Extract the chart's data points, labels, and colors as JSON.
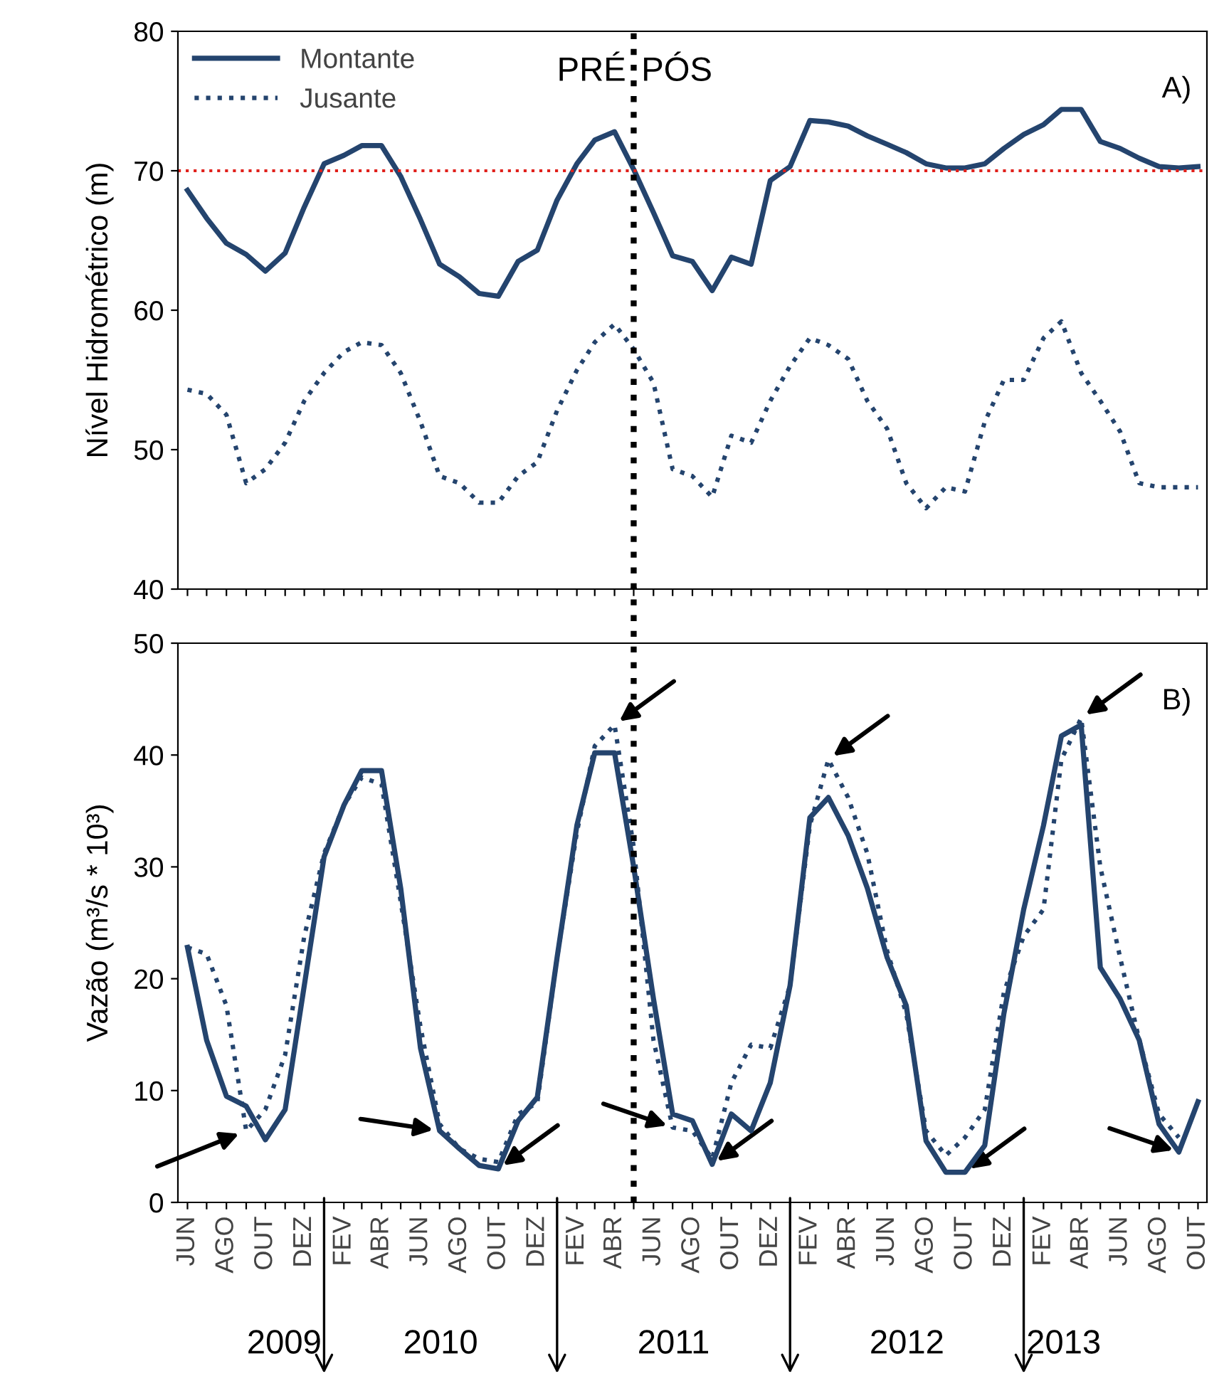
{
  "chart_data": [
    {
      "type": "line",
      "ylabel": "Nível Hidrométrico (m)",
      "ylim": [
        40,
        80
      ],
      "yticks": [
        40,
        50,
        60,
        70,
        80
      ],
      "tick_labels": "y",
      "legend": "top left",
      "grid": false,
      "marker": "none",
      "x": [
        "2009-06",
        "2009-07",
        "2009-08",
        "2009-09",
        "2009-10",
        "2009-11",
        "2009-12",
        "2010-01",
        "2010-02",
        "2010-03",
        "2010-04",
        "2010-05",
        "2010-06",
        "2010-07",
        "2010-08",
        "2010-09",
        "2010-10",
        "2010-11",
        "2010-12",
        "2011-01",
        "2011-02",
        "2011-03",
        "2011-04",
        "2011-05",
        "2011-06",
        "2011-07",
        "2011-08",
        "2011-09",
        "2011-10",
        "2011-11",
        "2011-12",
        "2012-01",
        "2012-02",
        "2012-03",
        "2012-04",
        "2012-05",
        "2012-06",
        "2012-07",
        "2012-08",
        "2012-09",
        "2012-10",
        "2012-11",
        "2012-12",
        "2013-01",
        "2013-02",
        "2013-03",
        "2013-04",
        "2013-05",
        "2013-06",
        "2013-07",
        "2013-08",
        "2013-09",
        "2013-10"
      ],
      "xlim": [
        "2009-05-17",
        "2013-10-15"
      ],
      "xticks": [
        {
          "value": "2009-06",
          "label": null
        },
        {
          "value": "2009-07",
          "label": null
        },
        {
          "value": "2009-08",
          "label": null
        },
        {
          "value": "2009-09",
          "label": null
        },
        {
          "value": "2009-10",
          "label": null
        },
        {
          "value": "2009-11",
          "label": null
        },
        {
          "value": "2009-12",
          "label": null
        },
        {
          "value": "2010-01",
          "label": null
        },
        {
          "value": "2010-02",
          "label": null
        },
        {
          "value": "2010-03",
          "label": null
        },
        {
          "value": "2010-04",
          "label": null
        },
        {
          "value": "2010-05",
          "label": null
        },
        {
          "value": "2010-06",
          "label": null
        },
        {
          "value": "2010-07",
          "label": null
        },
        {
          "value": "2010-08",
          "label": null
        },
        {
          "value": "2010-09",
          "label": null
        },
        {
          "value": "2010-10",
          "label": null
        },
        {
          "value": "2010-11",
          "label": null
        },
        {
          "value": "2010-12",
          "label": null
        },
        {
          "value": "2011-01",
          "label": null
        },
        {
          "value": "2011-02",
          "label": null
        },
        {
          "value": "2011-03",
          "label": null
        },
        {
          "value": "2011-04",
          "label": null
        },
        {
          "value": "2011-05",
          "label": null
        },
        {
          "value": "2011-06",
          "label": null
        },
        {
          "value": "2011-07",
          "label": null
        },
        {
          "value": "2011-08",
          "label": null
        },
        {
          "value": "2011-09",
          "label": null
        },
        {
          "value": "2011-10",
          "label": null
        },
        {
          "value": "2011-11",
          "label": null
        },
        {
          "value": "2011-12",
          "label": null
        },
        {
          "value": "2012-01",
          "label": null
        },
        {
          "value": "2012-02",
          "label": null
        },
        {
          "value": "2012-03",
          "label": null
        },
        {
          "value": "2012-04",
          "label": null
        },
        {
          "value": "2012-05",
          "label": null
        },
        {
          "value": "2012-06",
          "label": null
        },
        {
          "value": "2012-07",
          "label": null
        },
        {
          "value": "2012-08",
          "label": null
        },
        {
          "value": "2012-09",
          "label": null
        },
        {
          "value": "2012-10",
          "label": null
        },
        {
          "value": "2012-11",
          "label": null
        },
        {
          "value": "2012-12",
          "label": null
        },
        {
          "value": "2013-01",
          "label": null
        },
        {
          "value": "2013-02",
          "label": null
        },
        {
          "value": "2013-03",
          "label": null
        },
        {
          "value": "2013-04",
          "label": null
        },
        {
          "value": "2013-05",
          "label": null
        },
        {
          "value": "2013-06",
          "label": null
        },
        {
          "value": "2013-07",
          "label": null
        },
        {
          "value": "2013-08",
          "label": null
        },
        {
          "value": "2013-09",
          "label": null
        },
        {
          "value": "2013-10",
          "label": null
        }
      ],
      "series": [
        {
          "name": "Montante",
          "color": "#24446e",
          "line_style": "solid",
          "values": [
            68.6,
            66.6,
            64.8,
            64.0,
            62.8,
            64.1,
            67.4,
            70.5,
            71.1,
            71.8,
            71.8,
            69.6,
            66.5,
            63.3,
            62.4,
            61.2,
            61.0,
            63.5,
            64.3,
            67.9,
            70.5,
            72.2,
            72.8,
            70.1,
            67.0,
            63.9,
            63.5,
            61.4,
            63.8,
            63.3,
            69.3,
            70.3,
            73.6,
            73.5,
            73.2,
            72.5,
            71.9,
            71.3,
            70.5,
            70.2,
            70.2,
            70.5,
            71.6,
            72.6,
            73.3,
            74.4,
            74.4,
            72.1,
            71.6,
            70.9,
            70.3,
            70.2,
            70.3
          ]
        },
        {
          "name": "Jusante",
          "color": "#24446e",
          "line_style": "dotted",
          "values": [
            54.3,
            54.0,
            52.5,
            47.6,
            48.6,
            50.5,
            53.5,
            55.5,
            57.0,
            57.7,
            57.5,
            55.5,
            52.0,
            48.1,
            47.6,
            46.2,
            46.2,
            48.1,
            49.1,
            52.8,
            55.7,
            57.7,
            59.0,
            57.2,
            54.8,
            48.6,
            48.1,
            46.6,
            51.0,
            50.5,
            53.5,
            56.0,
            58.0,
            57.5,
            56.5,
            53.5,
            51.5,
            47.6,
            45.8,
            47.3,
            47.0,
            52.0,
            55.0,
            55.0,
            58.0,
            59.2,
            55.5,
            53.5,
            51.3,
            47.6,
            47.3,
            47.3,
            47.3
          ]
        }
      ],
      "ref_lines": [
        {
          "axis": "y",
          "value": 70,
          "color": "#e0201b",
          "line_style": "dotted"
        },
        {
          "axis": "x",
          "value": "2011-05",
          "color": "#000000",
          "line_style": "dotted"
        }
      ],
      "annotations": [
        "PRÉ",
        "PÓS",
        "A)"
      ]
    },
    {
      "type": "line",
      "ylabel": "Vazão (m³/s * 10³)",
      "ylim": [
        0,
        50
      ],
      "yticks": [
        0,
        10,
        20,
        30,
        40,
        50
      ],
      "grid": false,
      "marker": "none",
      "x": [
        "2009-06",
        "2009-07",
        "2009-08",
        "2009-09",
        "2009-10",
        "2009-11",
        "2009-12",
        "2010-01",
        "2010-02",
        "2010-03",
        "2010-04",
        "2010-05",
        "2010-06",
        "2010-07",
        "2010-08",
        "2010-09",
        "2010-10",
        "2010-11",
        "2010-12",
        "2011-01",
        "2011-02",
        "2011-03",
        "2011-04",
        "2011-05",
        "2011-06",
        "2011-07",
        "2011-08",
        "2011-09",
        "2011-10",
        "2011-11",
        "2011-12",
        "2012-01",
        "2012-02",
        "2012-03",
        "2012-04",
        "2012-05",
        "2012-06",
        "2012-07",
        "2012-08",
        "2012-09",
        "2012-10",
        "2012-11",
        "2012-12",
        "2013-01",
        "2013-02",
        "2013-03",
        "2013-04",
        "2013-05",
        "2013-06",
        "2013-07",
        "2013-08",
        "2013-09",
        "2013-10"
      ],
      "xlim": [
        "2009-05-17",
        "2013-10-15"
      ],
      "xticks": [
        {
          "value": "2009-06",
          "label": "JUN"
        },
        {
          "value": "2009-07",
          "label": null
        },
        {
          "value": "2009-08",
          "label": "AGO"
        },
        {
          "value": "2009-09",
          "label": null
        },
        {
          "value": "2009-10",
          "label": "OUT"
        },
        {
          "value": "2009-11",
          "label": null
        },
        {
          "value": "2009-12",
          "label": "DEZ"
        },
        {
          "value": "2010-01",
          "label": null
        },
        {
          "value": "2010-02",
          "label": "FEV"
        },
        {
          "value": "2010-03",
          "label": null
        },
        {
          "value": "2010-04",
          "label": "ABR"
        },
        {
          "value": "2010-05",
          "label": null
        },
        {
          "value": "2010-06",
          "label": "JUN"
        },
        {
          "value": "2010-07",
          "label": null
        },
        {
          "value": "2010-08",
          "label": "AGO"
        },
        {
          "value": "2010-09",
          "label": null
        },
        {
          "value": "2010-10",
          "label": "OUT"
        },
        {
          "value": "2010-11",
          "label": null
        },
        {
          "value": "2010-12",
          "label": "DEZ"
        },
        {
          "value": "2011-01",
          "label": null
        },
        {
          "value": "2011-02",
          "label": "FEV"
        },
        {
          "value": "2011-03",
          "label": null
        },
        {
          "value": "2011-04",
          "label": "ABR"
        },
        {
          "value": "2011-05",
          "label": null
        },
        {
          "value": "2011-06",
          "label": "JUN"
        },
        {
          "value": "2011-07",
          "label": null
        },
        {
          "value": "2011-08",
          "label": "AGO"
        },
        {
          "value": "2011-09",
          "label": null
        },
        {
          "value": "2011-10",
          "label": "OUT"
        },
        {
          "value": "2011-11",
          "label": null
        },
        {
          "value": "2011-12",
          "label": "DEZ"
        },
        {
          "value": "2012-01",
          "label": null
        },
        {
          "value": "2012-02",
          "label": "FEV"
        },
        {
          "value": "2012-03",
          "label": null
        },
        {
          "value": "2012-04",
          "label": "ABR"
        },
        {
          "value": "2012-05",
          "label": null
        },
        {
          "value": "2012-06",
          "label": "JUN"
        },
        {
          "value": "2012-07",
          "label": null
        },
        {
          "value": "2012-08",
          "label": "AGO"
        },
        {
          "value": "2012-09",
          "label": null
        },
        {
          "value": "2012-10",
          "label": "OUT"
        },
        {
          "value": "2012-11",
          "label": null
        },
        {
          "value": "2012-12",
          "label": "DEZ"
        },
        {
          "value": "2013-01",
          "label": null
        },
        {
          "value": "2013-02",
          "label": "FEV"
        },
        {
          "value": "2013-03",
          "label": null
        },
        {
          "value": "2013-04",
          "label": "ABR"
        },
        {
          "value": "2013-05",
          "label": null
        },
        {
          "value": "2013-06",
          "label": "JUN"
        },
        {
          "value": "2013-07",
          "label": null
        },
        {
          "value": "2013-08",
          "label": "AGO"
        },
        {
          "value": "2013-09",
          "label": null
        },
        {
          "value": "2013-10",
          "label": "OUT"
        }
      ],
      "series": [
        {
          "color": "#24446e",
          "line_style": "solid",
          "values": [
            22.8,
            14.5,
            9.5,
            8.6,
            5.6,
            8.3,
            19.4,
            30.9,
            35.5,
            38.6,
            38.6,
            28.1,
            13.8,
            6.4,
            4.8,
            3.3,
            3.0,
            7.3,
            9.4,
            21.9,
            33.7,
            40.2,
            40.2,
            30.0,
            18.2,
            7.9,
            7.3,
            3.4,
            7.9,
            6.4,
            10.7,
            19.4,
            34.4,
            36.2,
            32.8,
            28.1,
            21.9,
            17.6,
            5.5,
            2.7,
            2.7,
            5.1,
            16.9,
            26.2,
            33.7,
            41.7,
            42.7,
            21.0,
            18.2,
            14.5,
            7.0,
            4.5,
            9.0
          ]
        },
        {
          "color": "#24446e",
          "line_style": "dotted",
          "values": [
            22.8,
            22.2,
            17.6,
            6.4,
            8.3,
            13.2,
            23.8,
            31.2,
            35.5,
            38.0,
            37.4,
            26.9,
            15.7,
            7.0,
            4.8,
            3.9,
            3.6,
            7.9,
            8.9,
            21.9,
            33.1,
            40.8,
            42.7,
            31.8,
            14.5,
            6.7,
            6.4,
            3.9,
            10.7,
            14.1,
            13.8,
            19.4,
            33.7,
            39.6,
            36.2,
            31.2,
            22.5,
            16.9,
            6.4,
            4.2,
            5.8,
            8.3,
            18.8,
            23.8,
            26.2,
            39.6,
            43.3,
            30.0,
            21.9,
            14.5,
            7.9,
            5.8,
            null
          ]
        }
      ],
      "ref_lines": [
        {
          "axis": "x",
          "value": "2011-05",
          "color": "#000000",
          "line_style": "dotted"
        }
      ],
      "annotations": [
        "B)",
        "2009",
        "2010",
        "2011",
        "2012",
        "2013"
      ]
    }
  ]
}
